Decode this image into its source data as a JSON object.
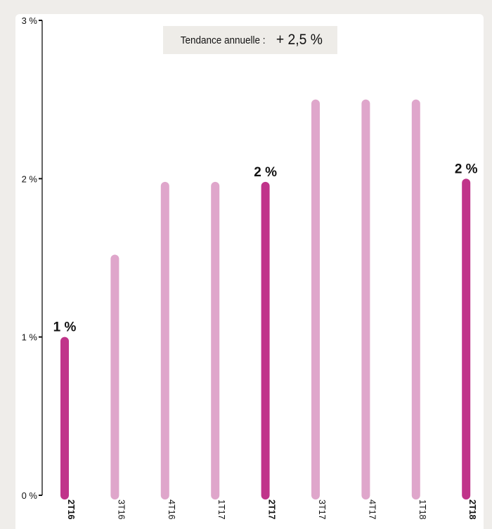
{
  "trend": {
    "label": "Tendance annuelle :",
    "value": "+ 2,5 %"
  },
  "colors": {
    "highlight": "#c0348a",
    "normal": "#dfa6cb",
    "axis": "#111111",
    "background": "#efedea"
  },
  "chart_data": {
    "type": "bar",
    "title": "",
    "xlabel": "",
    "ylabel": "",
    "ylim": [
      0,
      3
    ],
    "yticks": [
      {
        "value": 0,
        "label": "0 %"
      },
      {
        "value": 1,
        "label": "1 %"
      },
      {
        "value": 2,
        "label": "2 %"
      },
      {
        "value": 3,
        "label": "3 %"
      }
    ],
    "categories": [
      "2T16",
      "3T16",
      "4T16",
      "1T17",
      "2T17",
      "3T17",
      "4T17",
      "1T18",
      "2T18"
    ],
    "values": [
      1.0,
      1.52,
      1.98,
      1.98,
      1.98,
      2.5,
      2.5,
      2.5,
      2.0
    ],
    "highlighted": [
      true,
      false,
      false,
      false,
      true,
      false,
      false,
      false,
      true
    ],
    "data_labels": [
      "1 %",
      "",
      "",
      "",
      "2 %",
      "",
      "",
      "",
      "2 %"
    ],
    "grid": false,
    "legend": "none"
  }
}
